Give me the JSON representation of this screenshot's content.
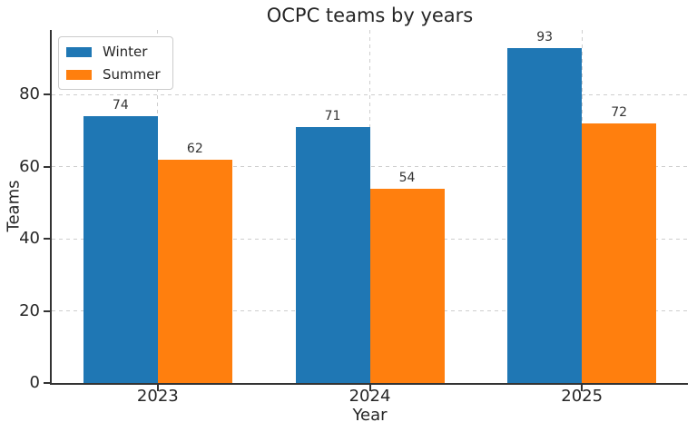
{
  "figure": {
    "background": "#ffffff",
    "text_color": "#262626",
    "grid_color": "#cecece",
    "spine_color": "#333333"
  },
  "chart_data": {
    "type": "bar",
    "title": "OCPC teams by years",
    "xlabel": "Year",
    "ylabel": "Teams",
    "categories": [
      "2023",
      "2024",
      "2025"
    ],
    "series": [
      {
        "name": "Winter",
        "color": "#1f77b4",
        "values": [
          74,
          71,
          93
        ]
      },
      {
        "name": "Summer",
        "color": "#ff7f0e",
        "values": [
          62,
          54,
          72
        ]
      }
    ],
    "yticks": [
      0,
      20,
      40,
      60,
      80
    ],
    "ylim": [
      0,
      98
    ],
    "grid": true,
    "grid_style": "dashed",
    "legend_position": "upper left",
    "bar_labels_shown": true
  }
}
